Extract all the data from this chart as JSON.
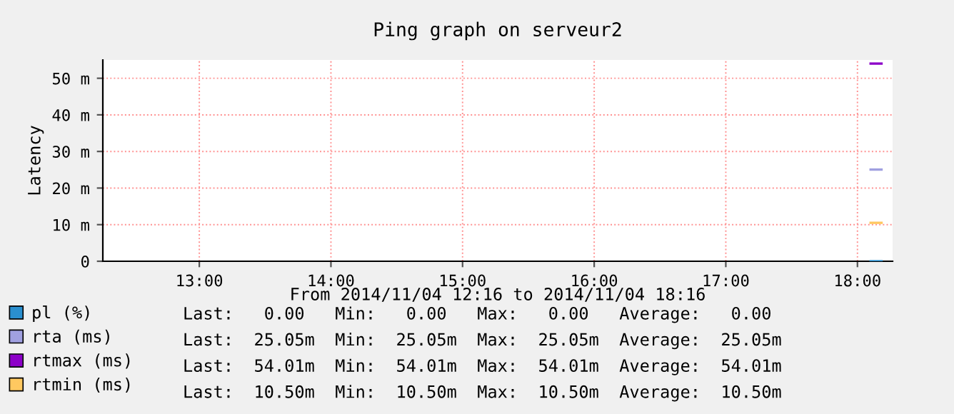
{
  "chart_data": {
    "type": "line",
    "title": "Ping graph on serveur2",
    "ylabel": "Latency",
    "annotations": [
      "From 2014/11/04 12:16 to 2014/11/04 18:16",
      "Last:   0.00   Min:   0.00   Max:   0.00   Average:   0.00",
      "Last:  25.05m  Min:  25.05m  Max:  25.05m  Average:  25.05m",
      "Last:  54.01m  Min:  54.01m  Max:  54.01m  Average:  54.01m",
      "Last:  10.50m  Min:  10.50m  Max:  10.50m  Average:  10.50m"
    ],
    "x": [
      18.1,
      18.183
    ],
    "series": [
      {
        "name": "pl (%)",
        "color": "#2a8fcf",
        "values": [
          0,
          0
        ]
      },
      {
        "name": "rta (ms)",
        "color": "#a0a0e0",
        "values": [
          25.05,
          25.05
        ]
      },
      {
        "name": "rtmax (ms)",
        "color": "#8c00c8",
        "values": [
          54.01,
          54.01
        ]
      },
      {
        "name": "rtmin (ms)",
        "color": "#ffc860",
        "values": [
          10.5,
          10.5
        ]
      }
    ],
    "xlim": [
      12.267,
      18.267
    ],
    "xticks": [
      {
        "value": 13,
        "label": "13:00"
      },
      {
        "value": 14,
        "label": "14:00"
      },
      {
        "value": 15,
        "label": "15:00"
      },
      {
        "value": 16,
        "label": "16:00"
      },
      {
        "value": 17,
        "label": "17:00"
      },
      {
        "value": 18,
        "label": "18:00"
      }
    ],
    "ylim": [
      0,
      55
    ],
    "yticks": [
      0,
      {
        "value": 10,
        "label": "10 m"
      },
      {
        "value": 20,
        "label": "20 m"
      },
      {
        "value": 30,
        "label": "30 m"
      },
      {
        "value": 40,
        "label": "40 m"
      },
      {
        "value": 50,
        "label": "50 m"
      }
    ],
    "grid": true,
    "legend": "bottom",
    "marker": "none",
    "line_style": "solid"
  }
}
